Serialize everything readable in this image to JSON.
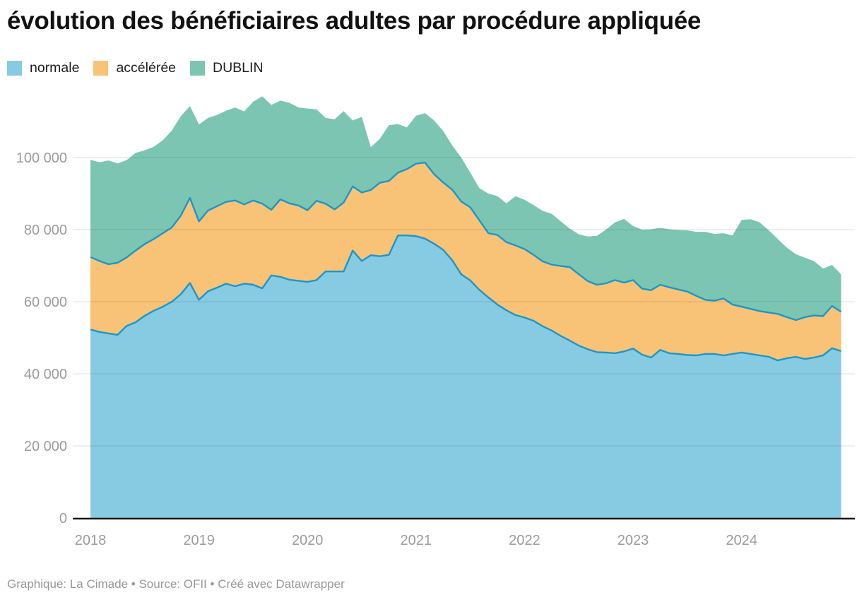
{
  "header": {
    "title": "évolution des bénéficiaires adultes par procédure appliquée"
  },
  "legend": {
    "items": [
      {
        "label": "normale",
        "color": "#87CBE3"
      },
      {
        "label": "accélérée",
        "color": "#F9C377"
      },
      {
        "label": "DUBLIN",
        "color": "#7CC5B2"
      }
    ]
  },
  "footer": {
    "text": "Graphique: La Cimade  • Source: OFII  • Créé avec Datawrapper"
  },
  "chart_data": {
    "type": "area",
    "stacked": true,
    "title": "évolution des bénéficiaires adultes par procédure appliquée",
    "x_start": "2018-01",
    "x_step": "1 month",
    "n_points": 84,
    "x_ticks": [
      {
        "label": "2018",
        "month_index": 0
      },
      {
        "label": "2019",
        "month_index": 12
      },
      {
        "label": "2020",
        "month_index": 24
      },
      {
        "label": "2021",
        "month_index": 36
      },
      {
        "label": "2022",
        "month_index": 48
      },
      {
        "label": "2023",
        "month_index": 60
      },
      {
        "label": "2024",
        "month_index": 72
      }
    ],
    "y_ticks": [
      {
        "label": "100 000",
        "value": 100000
      },
      {
        "label": "80 000",
        "value": 80000
      },
      {
        "label": "60 000",
        "value": 60000
      },
      {
        "label": "40 000",
        "value": 40000
      },
      {
        "label": "20 000",
        "value": 20000
      },
      {
        "label": "0",
        "value": 0
      }
    ],
    "ylim": [
      0,
      118000
    ],
    "grid": "horizontal",
    "legend_position": "top-left",
    "line_color": "#1E96C8",
    "axis_text_color": "#9B9B9B",
    "series": [
      {
        "name": "normale",
        "color": "#87CBE3",
        "values": [
          52300,
          51600,
          51200,
          50800,
          53300,
          54300,
          56100,
          57500,
          58600,
          60000,
          62100,
          65200,
          60500,
          62900,
          63900,
          65000,
          64300,
          65000,
          64700,
          63700,
          67300,
          66900,
          66100,
          65800,
          65500,
          66000,
          68400,
          68400,
          68400,
          74200,
          71300,
          72900,
          72600,
          73000,
          78400,
          78400,
          78200,
          77500,
          76100,
          74400,
          71500,
          67600,
          65900,
          63300,
          61200,
          59200,
          57600,
          56300,
          55600,
          54700,
          53200,
          52000,
          50500,
          49200,
          47800,
          46800,
          46000,
          45900,
          45700,
          46200,
          47000,
          45300,
          44500,
          46600,
          45700,
          45500,
          45200,
          45100,
          45500,
          45500,
          45100,
          45500,
          45900,
          45500,
          45100,
          44700,
          43700,
          44300,
          44700,
          44100,
          44500,
          45100,
          47100,
          46300
        ]
      },
      {
        "name": "accélérée",
        "color": "#F9C377",
        "values": [
          20100,
          19700,
          19200,
          20000,
          19000,
          19900,
          19900,
          19900,
          20400,
          20600,
          21800,
          23600,
          21800,
          22400,
          22600,
          22700,
          23800,
          22000,
          23400,
          23500,
          18200,
          21500,
          21200,
          20900,
          19900,
          22000,
          18800,
          17200,
          19100,
          17800,
          19000,
          18100,
          20400,
          20500,
          17400,
          18400,
          20100,
          21100,
          19300,
          18700,
          19600,
          20200,
          20300,
          19300,
          17800,
          19300,
          18900,
          19300,
          19000,
          18300,
          18000,
          18300,
          19400,
          20400,
          19800,
          18900,
          18700,
          19200,
          20300,
          19100,
          19000,
          18300,
          18700,
          18100,
          18300,
          17900,
          17600,
          16500,
          15000,
          14800,
          15800,
          13700,
          12700,
          12500,
          12300,
          12300,
          12900,
          11400,
          10200,
          11600,
          11700,
          10900,
          11700,
          10900
        ]
      },
      {
        "name": "DUBLIN",
        "color": "#7CC5B2",
        "values": [
          27000,
          27400,
          28800,
          27600,
          27000,
          27100,
          26000,
          25600,
          25800,
          26900,
          27600,
          25500,
          26900,
          25700,
          25300,
          25300,
          25800,
          25800,
          27400,
          29800,
          29100,
          27400,
          27900,
          27200,
          28200,
          25400,
          23800,
          25000,
          25400,
          18300,
          21000,
          11900,
          12200,
          15500,
          13500,
          11600,
          13300,
          13700,
          14900,
          14300,
          12300,
          12200,
          9600,
          8900,
          11000,
          10800,
          10800,
          13700,
          13700,
          13800,
          14000,
          14100,
          12400,
          10700,
          11100,
          12400,
          13600,
          14900,
          16000,
          17700,
          15000,
          16400,
          16900,
          15800,
          16100,
          16500,
          17000,
          17800,
          18900,
          18500,
          18100,
          19200,
          24100,
          24900,
          24600,
          22800,
          20800,
          19300,
          18300,
          16500,
          15100,
          13200,
          11400,
          10400
        ]
      }
    ]
  }
}
